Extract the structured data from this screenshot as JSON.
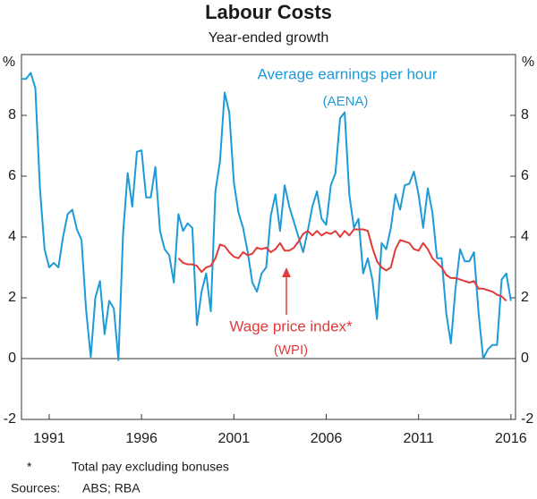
{
  "chart_data": {
    "type": "line",
    "title": "Labour Costs",
    "subtitle": "Year-ended growth",
    "y_unit": "%",
    "y2_unit": "%",
    "footnote_marker": "*",
    "footnote": "Total pay excluding bonuses",
    "sources_label": "Sources:",
    "sources": "ABS; RBA",
    "annotations": [
      {
        "text": "Average earnings per hour",
        "series": 0
      },
      {
        "text": "(AENA)",
        "series": 0
      },
      {
        "text": "Wage price index*",
        "series": 1
      },
      {
        "text": "(WPI)",
        "series": 1
      }
    ],
    "xlim": [
      1989.5,
      2016.25
    ],
    "xticks": [
      1991,
      1996,
      2001,
      2006,
      2011,
      2016
    ],
    "ylim": [
      -2,
      10
    ],
    "yticks": [
      -2,
      0,
      2,
      4,
      6,
      8
    ],
    "y2lim": [
      -2,
      10
    ],
    "y2ticks": [
      -2,
      0,
      2,
      4,
      6,
      8
    ],
    "x": [
      1989.5,
      1989.75,
      1990,
      1990.25,
      1990.5,
      1990.75,
      1991,
      1991.25,
      1991.5,
      1991.75,
      1992,
      1992.25,
      1992.5,
      1992.75,
      1993,
      1993.25,
      1993.5,
      1993.75,
      1994,
      1994.25,
      1994.5,
      1994.75,
      1995,
      1995.25,
      1995.5,
      1995.75,
      1996,
      1996.25,
      1996.5,
      1996.75,
      1997,
      1997.25,
      1997.5,
      1997.75,
      1998,
      1998.25,
      1998.5,
      1998.75,
      1999,
      1999.25,
      1999.5,
      1999.75,
      2000,
      2000.25,
      2000.5,
      2000.75,
      2001,
      2001.25,
      2001.5,
      2001.75,
      2002,
      2002.25,
      2002.5,
      2002.75,
      2003,
      2003.25,
      2003.5,
      2003.75,
      2004,
      2004.25,
      2004.5,
      2004.75,
      2005,
      2005.25,
      2005.5,
      2005.75,
      2006,
      2006.25,
      2006.5,
      2006.75,
      2007,
      2007.25,
      2007.5,
      2007.75,
      2008,
      2008.25,
      2008.5,
      2008.75,
      2009,
      2009.25,
      2009.5,
      2009.75,
      2010,
      2010.25,
      2010.5,
      2010.75,
      2011,
      2011.25,
      2011.5,
      2011.75,
      2012,
      2012.25,
      2012.5,
      2012.75,
      2013,
      2013.25,
      2013.5,
      2013.75,
      2014,
      2014.25,
      2014.5,
      2014.75,
      2015,
      2015.25,
      2015.5,
      2015.75,
      2016
    ],
    "series": [
      {
        "name": "AENA",
        "color": "#1e9bd7",
        "values": [
          9.2,
          9.2,
          9.4,
          8.9,
          5.6,
          3.6,
          3.0,
          3.15,
          3.0,
          4.0,
          4.75,
          4.9,
          4.25,
          3.9,
          1.6,
          0.05,
          2.0,
          2.55,
          0.8,
          1.9,
          1.65,
          -0.05,
          4.1,
          6.1,
          5.0,
          6.8,
          6.85,
          5.3,
          5.3,
          6.3,
          4.2,
          3.6,
          3.4,
          2.5,
          4.75,
          4.2,
          4.45,
          4.3,
          1.1,
          2.2,
          2.8,
          1.55,
          5.5,
          6.5,
          8.75,
          8.1,
          5.8,
          4.8,
          4.3,
          3.5,
          2.5,
          2.2,
          2.8,
          3.0,
          4.7,
          5.4,
          4.2,
          5.7,
          5.0,
          4.5,
          4.0,
          3.5,
          4.2,
          5.0,
          5.5,
          4.6,
          4.4,
          5.7,
          6.1,
          7.9,
          8.1,
          5.4,
          4.3,
          4.6,
          2.8,
          3.3,
          2.6,
          1.3,
          3.8,
          3.6,
          4.3,
          5.4,
          4.9,
          5.7,
          5.75,
          6.15,
          5.4,
          4.3,
          5.6,
          4.8,
          3.3,
          3.3,
          1.5,
          0.5,
          2.3,
          3.6,
          3.2,
          3.2,
          3.5,
          1.5,
          0.0,
          0.3,
          0.45,
          0.45,
          2.6,
          2.8,
          1.9
        ]
      },
      {
        "name": "WPI",
        "color": "#e03a3a",
        "values": [
          null,
          null,
          null,
          null,
          null,
          null,
          null,
          null,
          null,
          null,
          null,
          null,
          null,
          null,
          null,
          null,
          null,
          null,
          null,
          null,
          null,
          null,
          null,
          null,
          null,
          null,
          null,
          null,
          null,
          null,
          null,
          null,
          null,
          null,
          3.3,
          3.15,
          3.1,
          3.1,
          3.05,
          2.85,
          3.0,
          3.05,
          3.3,
          3.75,
          3.7,
          3.5,
          3.35,
          3.3,
          3.5,
          3.4,
          3.45,
          3.65,
          3.6,
          3.65,
          3.5,
          3.6,
          3.8,
          3.55,
          3.55,
          3.65,
          3.85,
          4.1,
          4.2,
          4.05,
          4.2,
          4.05,
          4.15,
          4.1,
          4.2,
          4.0,
          4.2,
          4.05,
          4.25,
          4.25,
          4.25,
          4.2,
          3.65,
          3.2,
          3.0,
          2.9,
          3.0,
          3.6,
          3.9,
          3.85,
          3.8,
          3.6,
          3.55,
          3.8,
          3.6,
          3.3,
          3.15,
          3.0,
          2.75,
          2.65,
          2.65,
          2.6,
          2.55,
          2.5,
          2.55,
          2.3,
          2.3,
          2.25,
          2.2,
          2.1,
          2.05,
          1.9,
          null
        ]
      }
    ]
  }
}
